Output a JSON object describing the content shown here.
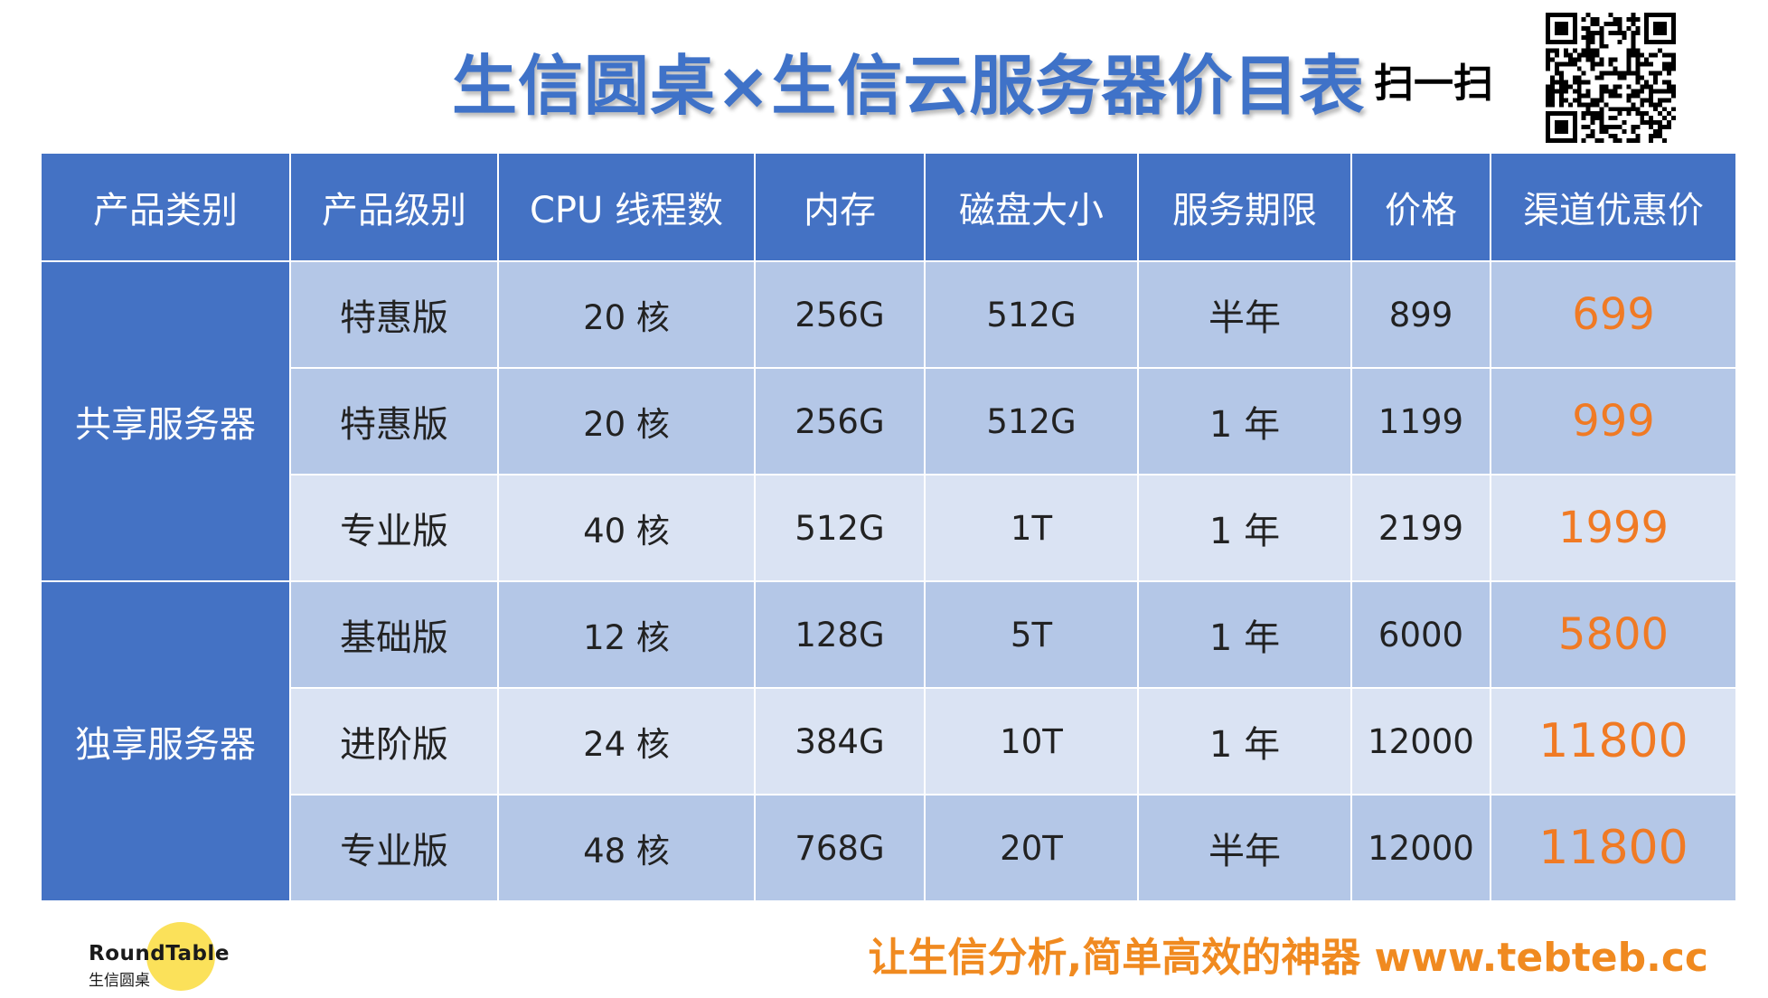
{
  "header": {
    "title": "生信圆桌×生信云服务器价目表",
    "scan_label": "扫一扫",
    "qr_icon": "qr-code-icon"
  },
  "table": {
    "columns": [
      "产品类别",
      "产品级别",
      "CPU 线程数",
      "内存",
      "磁盘大小",
      "服务期限",
      "价格",
      "渠道优惠价"
    ],
    "groups": [
      {
        "category": "共享服务器",
        "rows": [
          {
            "level": "特惠版",
            "cpu": "20 核",
            "memory": "256G",
            "disk": "512G",
            "term": "半年",
            "price": "899",
            "deal": "699"
          },
          {
            "level": "特惠版",
            "cpu": "20 核",
            "memory": "256G",
            "disk": "512G",
            "term": "1 年",
            "price": "1199",
            "deal": "999"
          },
          {
            "level": "专业版",
            "cpu": "40 核",
            "memory": "512G",
            "disk": "1T",
            "term": "1 年",
            "price": "2199",
            "deal": "1999"
          }
        ]
      },
      {
        "category": "独享服务器",
        "rows": [
          {
            "level": "基础版",
            "cpu": "12 核",
            "memory": "128G",
            "disk": "5T",
            "term": "1 年",
            "price": "6000",
            "deal": "5800"
          },
          {
            "level": "进阶版",
            "cpu": "24 核",
            "memory": "384G",
            "disk": "10T",
            "term": "1 年",
            "price": "12000",
            "deal": "11800"
          },
          {
            "level": "专业版",
            "cpu": "48 核",
            "memory": "768G",
            "disk": "20T",
            "term": "半年",
            "price": "12000",
            "deal": "11800"
          }
        ]
      }
    ]
  },
  "footer": {
    "logo_en": "RoundTable",
    "logo_cn": "生信圆桌",
    "slogan": "让生信分析,简单高效的神器 www.tebteb.cc"
  },
  "colors": {
    "title": "#3f72c8",
    "header_bg": "#4472c4",
    "row_dark": "#b4c7e7",
    "row_light": "#dae3f3",
    "deal_price": "#f07a24",
    "slogan": "#f08a20",
    "logo_circle": "#fbe15a"
  }
}
